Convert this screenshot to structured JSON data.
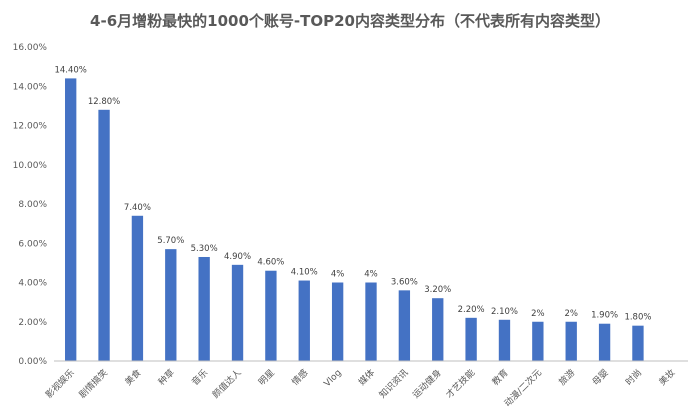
{
  "chart_data": {
    "type": "bar",
    "title": "4-6月增粉最快的1000个账号-TOP20内容类型分布（不代表所有内容类型）",
    "categories": [
      "影视娱乐",
      "剧情搞笑",
      "美食",
      "种草",
      "音乐",
      "颜值达人",
      "明星",
      "情感",
      "Vlog",
      "媒体",
      "知识资讯",
      "运动健身",
      "才艺技能",
      "教育",
      "动漫/二次元",
      "旅游",
      "母婴",
      "时尚",
      "美妆"
    ],
    "values": [
      14.4,
      12.8,
      7.4,
      5.7,
      5.3,
      4.9,
      4.6,
      4.1,
      4,
      4,
      3.6,
      3.2,
      2.2,
      2.1,
      2,
      2,
      1.9,
      1.8,
      null
    ],
    "data_labels": [
      "14.40%",
      "12.80%",
      "7.40%",
      "5.70%",
      "5.30%",
      "4.90%",
      "4.60%",
      "4.10%",
      "4%",
      "4%",
      "3.60%",
      "3.20%",
      "2.20%",
      "2.10%",
      "2%",
      "2%",
      "1.90%",
      "1.80%",
      ""
    ],
    "y_ticks": [
      "0.00%",
      "2.00%",
      "4.00%",
      "6.00%",
      "8.00%",
      "10.00%",
      "12.00%",
      "14.00%",
      "16.00%"
    ],
    "ylim": [
      0,
      16
    ],
    "xlabel": "",
    "ylabel": "",
    "grid": false,
    "legend": "none",
    "bar_color": "#4472c4"
  }
}
